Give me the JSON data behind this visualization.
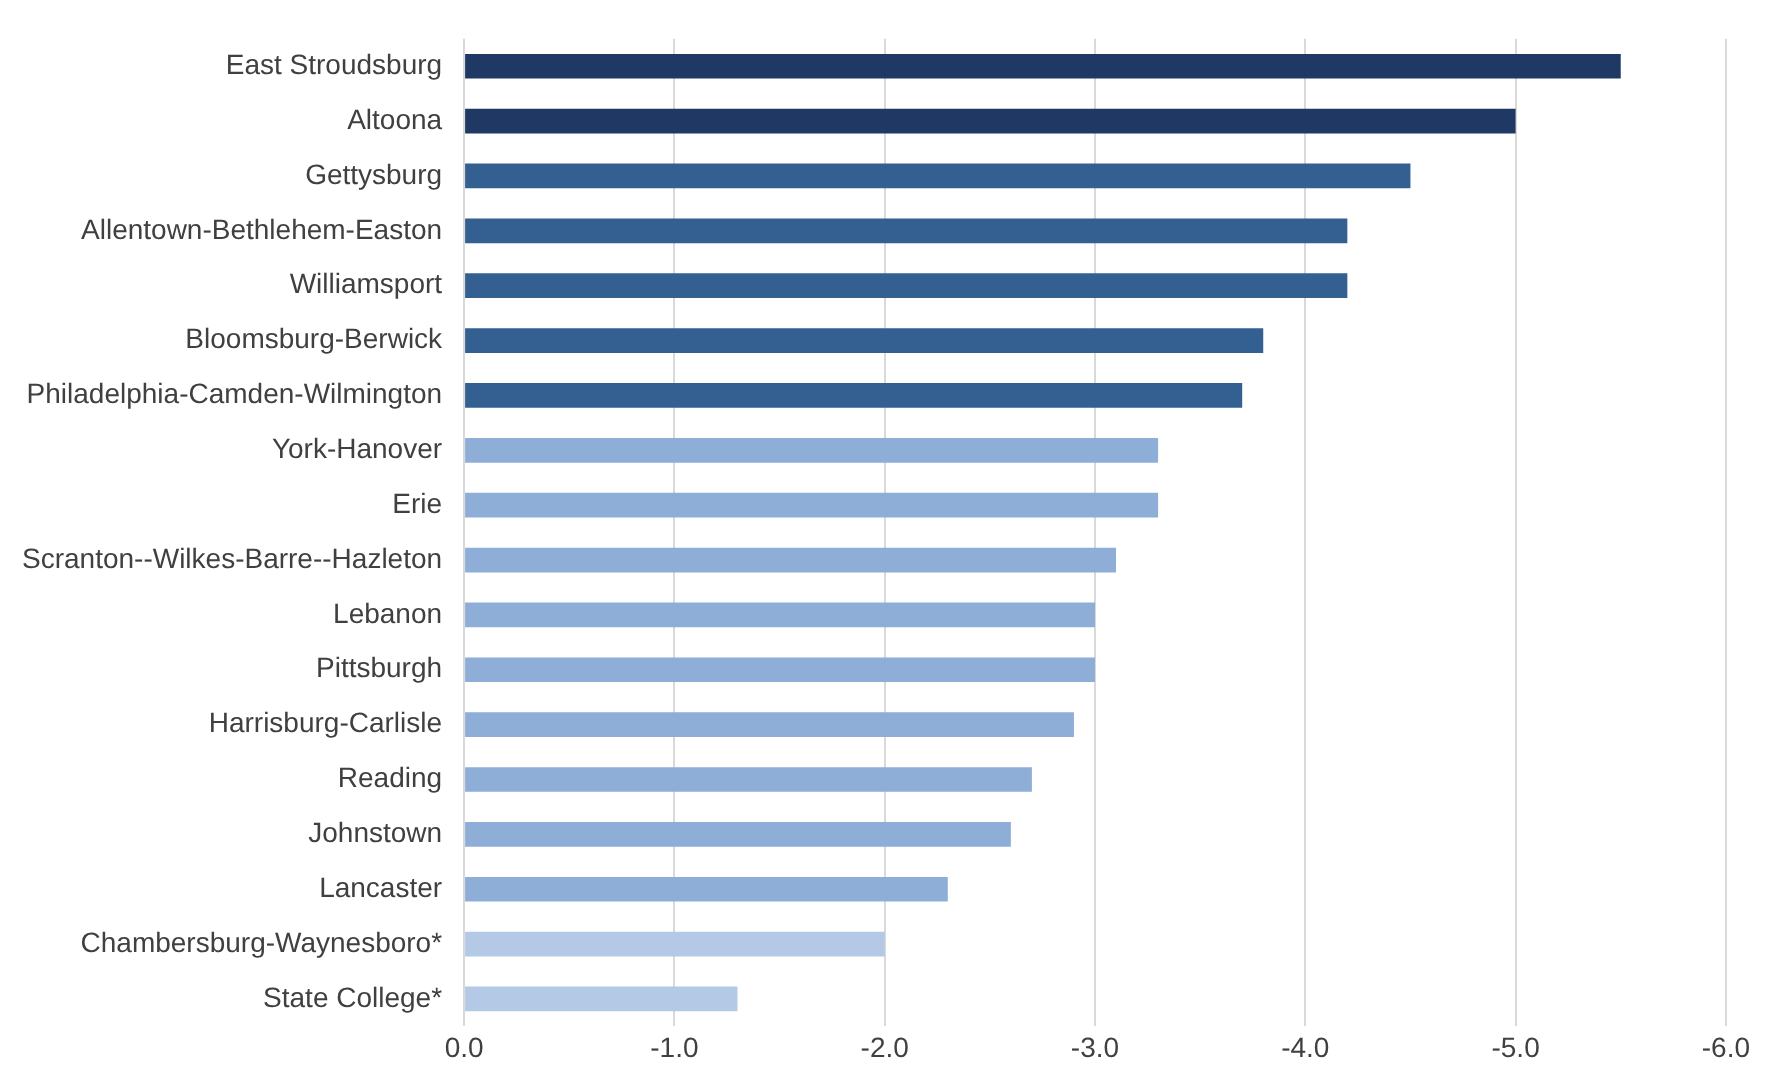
{
  "chart_data": {
    "type": "bar",
    "orientation": "horizontal",
    "categories": [
      "East Stroudsburg",
      "Altoona",
      "Gettysburg",
      "Allentown-Bethlehem-Easton",
      "Williamsport",
      "Bloomsburg-Berwick",
      "Philadelphia-Camden-Wilmington",
      "York-Hanover",
      "Erie",
      "Scranton--Wilkes-Barre--Hazleton",
      "Lebanon",
      "Pittsburgh",
      "Harrisburg-Carlisle",
      "Reading",
      "Johnstown",
      "Lancaster",
      "Chambersburg-Waynesboro*",
      "State College*"
    ],
    "values": [
      -5.5,
      -5.0,
      -4.5,
      -4.2,
      -4.2,
      -3.8,
      -3.7,
      -3.3,
      -3.3,
      -3.1,
      -3.0,
      -3.0,
      -2.9,
      -2.7,
      -2.6,
      -2.3,
      -2.0,
      -1.3
    ],
    "colors": [
      "#1f3864",
      "#1f3864",
      "#335f91",
      "#335f91",
      "#335f91",
      "#335f91",
      "#335f91",
      "#8eaed8",
      "#8eaed8",
      "#8eaed8",
      "#8eaed8",
      "#8eaed8",
      "#8eaed8",
      "#8eaed8",
      "#8eaed8",
      "#8eaed8",
      "#b4c9e6",
      "#b4c9e6"
    ],
    "xlim": [
      0,
      -6
    ],
    "xticks": [
      {
        "value": 0,
        "label": "0.0"
      },
      {
        "value": -1,
        "label": "-1.0"
      },
      {
        "value": -2,
        "label": "-2.0"
      },
      {
        "value": -3,
        "label": "-3.0"
      },
      {
        "value": -4,
        "label": "-4.0"
      },
      {
        "value": -5,
        "label": "-5.0"
      },
      {
        "value": -6,
        "label": "-6.0"
      }
    ],
    "grid": "x"
  }
}
